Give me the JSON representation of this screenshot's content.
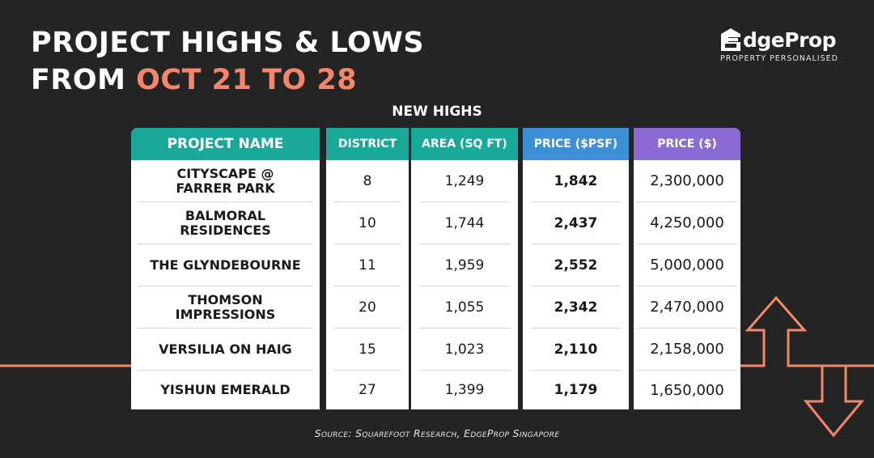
{
  "title": {
    "line1": "PROJECT HIGHS & LOWS",
    "line2_prefix": "FROM ",
    "line2_accent": "OCT 21 TO 28"
  },
  "logo": {
    "name": "EdgeProp",
    "name_rest": "dgeProp",
    "tagline": "PROPERTY PERSONALISED"
  },
  "section_title": "NEW HIGHS",
  "table": {
    "headers": [
      "PROJECT NAME",
      "DISTRICT",
      "AREA (SQ FT)",
      "PRICE ($PSF)",
      "PRICE ($)"
    ],
    "rows": [
      {
        "project_line1": "CITYSCAPE @",
        "project_line2": "FARRER PARK",
        "district": "8",
        "area": "1,249",
        "psf": "1,842",
        "price": "2,300,000"
      },
      {
        "project_line1": "BALMORAL",
        "project_line2": "RESIDENCES",
        "district": "10",
        "area": "1,744",
        "psf": "2,437",
        "price": "4,250,000"
      },
      {
        "project_line1": "THE GLYNDEBOURNE",
        "project_line2": "",
        "district": "11",
        "area": "1,959",
        "psf": "2,552",
        "price": "5,000,000"
      },
      {
        "project_line1": "THOMSON",
        "project_line2": "IMPRESSIONS",
        "district": "20",
        "area": "1,055",
        "psf": "2,342",
        "price": "2,470,000"
      },
      {
        "project_line1": "VERSILIA ON HAIG",
        "project_line2": "",
        "district": "15",
        "area": "1,023",
        "psf": "2,110",
        "price": "2,158,000"
      },
      {
        "project_line1": "YISHUN EMERALD",
        "project_line2": "",
        "district": "27",
        "area": "1,399",
        "psf": "1,179",
        "price": "1,650,000"
      }
    ]
  },
  "source": "Source: Squarefoot Research, EdgeProp Singapore",
  "colors": {
    "background": "#242424",
    "accent": "#f4866a",
    "teal": "#19a99a",
    "blue": "#3e8fd6",
    "purple": "#8b6ad4"
  }
}
